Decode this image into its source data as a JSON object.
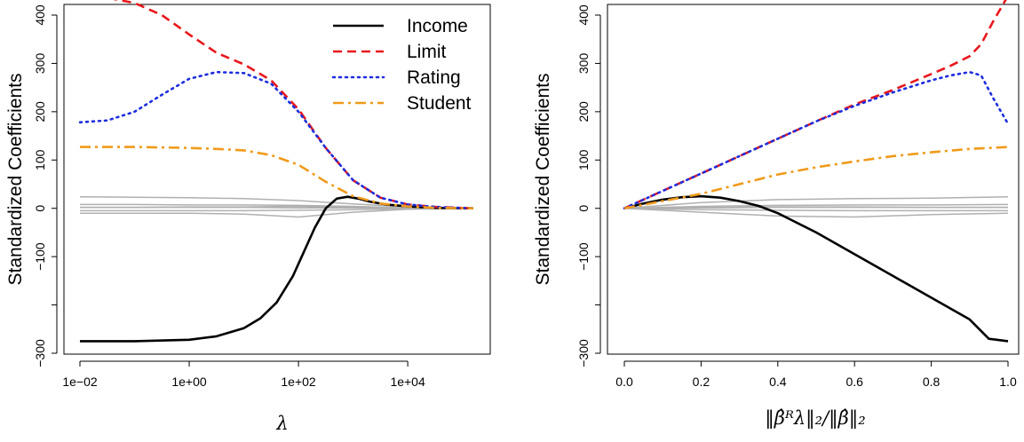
{
  "chart_data": [
    {
      "type": "line",
      "id": "left",
      "xscale": "log10",
      "xlim": [
        -2,
        5.3
      ],
      "ylim": [
        -300,
        450
      ],
      "xlabel": "λ",
      "ylabel": "Standardized Coefficients",
      "xticks": [
        {
          "value": -2,
          "label": "1e−02"
        },
        {
          "value": 0,
          "label": "1e+00"
        },
        {
          "value": 2,
          "label": "1e+02"
        },
        {
          "value": 4,
          "label": "1e+04"
        }
      ],
      "yticks": [
        {
          "value": -300,
          "label": "−300"
        },
        {
          "value": -200,
          "label": ""
        },
        {
          "value": -100,
          "label": "−100"
        },
        {
          "value": 0,
          "label": "0"
        },
        {
          "value": 100,
          "label": "100"
        },
        {
          "value": 200,
          "label": "200"
        },
        {
          "value": 300,
          "label": "300"
        },
        {
          "value": 400,
          "label": "400"
        }
      ],
      "legend": {
        "position": "top-right",
        "entries": [
          {
            "label": "Income",
            "series": "Income"
          },
          {
            "label": "Limit",
            "series": "Limit"
          },
          {
            "label": "Rating",
            "series": "Rating"
          },
          {
            "label": "Student",
            "series": "Student"
          }
        ]
      },
      "series": [
        {
          "name": "Income",
          "color": "#000000",
          "style": "solid",
          "x": [
            -2,
            -1,
            0,
            0.5,
            1,
            1.3,
            1.6,
            1.9,
            2.1,
            2.3,
            2.5,
            2.7,
            2.9,
            3.1,
            3.3,
            3.6,
            4,
            4.5,
            5.2
          ],
          "y": [
            -275,
            -275,
            -272,
            -265,
            -248,
            -228,
            -195,
            -140,
            -90,
            -40,
            0,
            20,
            24,
            20,
            14,
            8,
            4,
            1,
            0
          ]
        },
        {
          "name": "Limit",
          "color": "#e8181d",
          "style": "dashed",
          "x": [
            -2,
            -1.5,
            -1,
            -0.5,
            0,
            0.5,
            1,
            1.5,
            2,
            2.5,
            3,
            3.5,
            4,
            4.5,
            5.2
          ],
          "y": [
            437,
            436,
            425,
            400,
            360,
            322,
            298,
            265,
            205,
            125,
            58,
            22,
            8,
            3,
            0
          ]
        },
        {
          "name": "Rating",
          "color": "#1e2ede",
          "style": "dotted",
          "x": [
            -2,
            -1.5,
            -1,
            -0.5,
            0,
            0.5,
            1,
            1.5,
            2,
            2.5,
            3,
            3.5,
            4,
            4.5,
            5.2
          ],
          "y": [
            178,
            182,
            200,
            235,
            268,
            282,
            280,
            258,
            200,
            125,
            58,
            22,
            8,
            3,
            0
          ]
        },
        {
          "name": "Student",
          "color": "#f09a1a",
          "style": "dotdash",
          "x": [
            -2,
            -1.5,
            -1,
            -0.5,
            0,
            0.5,
            1,
            1.5,
            2,
            2.5,
            3,
            3.5,
            4,
            4.5,
            5.2
          ],
          "y": [
            127,
            127,
            127,
            126,
            125,
            123,
            120,
            110,
            90,
            55,
            25,
            10,
            4,
            1,
            0
          ]
        },
        {
          "name": "other-1",
          "color": "#b0b0b0",
          "style": "solid",
          "x": [
            -2,
            -1,
            0,
            1,
            2,
            3,
            4,
            5.2
          ],
          "y": [
            24,
            23,
            22,
            20,
            16,
            9,
            3,
            0
          ]
        },
        {
          "name": "other-2",
          "color": "#b0b0b0",
          "style": "solid",
          "x": [
            -2,
            -1,
            0,
            1,
            2,
            3,
            4,
            5.2
          ],
          "y": [
            8,
            8,
            7,
            7,
            6,
            4,
            1,
            0
          ]
        },
        {
          "name": "other-3",
          "color": "#b0b0b0",
          "style": "solid",
          "x": [
            -2,
            -1,
            0,
            1,
            2,
            3,
            4,
            5.2
          ],
          "y": [
            2,
            2,
            2,
            2,
            1,
            1,
            0,
            0
          ]
        },
        {
          "name": "other-4",
          "color": "#b0b0b0",
          "style": "solid",
          "x": [
            -2,
            -1,
            0,
            1,
            2,
            3,
            4,
            5.2
          ],
          "y": [
            -5,
            -5,
            -5,
            -5,
            -4,
            -3,
            -1,
            0
          ]
        },
        {
          "name": "other-5",
          "color": "#b0b0b0",
          "style": "solid",
          "x": [
            -2,
            -1,
            0,
            1,
            2,
            3,
            4,
            5.2
          ],
          "y": [
            -10,
            -10,
            -10,
            -12,
            -18,
            -8,
            -2,
            0
          ]
        },
        {
          "name": "other-6",
          "color": "#b0b0b0",
          "style": "solid",
          "x": [
            -2,
            -1,
            0,
            1,
            2,
            3,
            4,
            5.2
          ],
          "y": [
            2,
            2,
            3,
            3,
            4,
            2,
            1,
            0
          ]
        }
      ]
    },
    {
      "type": "line",
      "id": "right",
      "xlim": [
        -0.04,
        1.04
      ],
      "ylim": [
        -300,
        450
      ],
      "xlabel": "‖β̂ᴿλ‖₂/‖β̂‖₂",
      "ylabel": "Standardized Coefficients",
      "xticks": [
        {
          "value": 0.0,
          "label": "0.0"
        },
        {
          "value": 0.2,
          "label": "0.2"
        },
        {
          "value": 0.4,
          "label": "0.4"
        },
        {
          "value": 0.6,
          "label": "0.6"
        },
        {
          "value": 0.8,
          "label": "0.8"
        },
        {
          "value": 1.0,
          "label": "1.0"
        }
      ],
      "yticks": [
        {
          "value": -300,
          "label": "−300"
        },
        {
          "value": -200,
          "label": ""
        },
        {
          "value": -100,
          "label": "−100"
        },
        {
          "value": 0,
          "label": "0"
        },
        {
          "value": 100,
          "label": "100"
        },
        {
          "value": 200,
          "label": "200"
        },
        {
          "value": 300,
          "label": "300"
        },
        {
          "value": 400,
          "label": "400"
        }
      ],
      "series": [
        {
          "name": "Income",
          "color": "#000000",
          "style": "solid",
          "x": [
            0,
            0.05,
            0.1,
            0.15,
            0.2,
            0.25,
            0.3,
            0.35,
            0.4,
            0.5,
            0.6,
            0.7,
            0.8,
            0.9,
            0.95,
            1.0
          ],
          "y": [
            0,
            10,
            18,
            23,
            25,
            22,
            15,
            5,
            -10,
            -50,
            -95,
            -140,
            -185,
            -230,
            -270,
            -275
          ]
        },
        {
          "name": "Limit",
          "color": "#e8181d",
          "style": "dashed",
          "x": [
            0,
            0.1,
            0.2,
            0.3,
            0.4,
            0.5,
            0.6,
            0.7,
            0.8,
            0.85,
            0.9,
            0.93,
            0.96,
            1.0
          ],
          "y": [
            0,
            36,
            72,
            108,
            144,
            180,
            215,
            245,
            278,
            295,
            315,
            340,
            385,
            440
          ]
        },
        {
          "name": "Rating",
          "color": "#1e2ede",
          "style": "dotted",
          "x": [
            0,
            0.1,
            0.2,
            0.3,
            0.4,
            0.5,
            0.6,
            0.7,
            0.8,
            0.85,
            0.9,
            0.93,
            0.96,
            1.0
          ],
          "y": [
            0,
            36,
            72,
            108,
            144,
            180,
            212,
            240,
            265,
            275,
            282,
            275,
            230,
            175
          ]
        },
        {
          "name": "Student",
          "color": "#f09a1a",
          "style": "dotdash",
          "x": [
            0,
            0.1,
            0.2,
            0.3,
            0.4,
            0.5,
            0.6,
            0.7,
            0.8,
            0.9,
            1.0
          ],
          "y": [
            0,
            15,
            30,
            50,
            70,
            85,
            97,
            108,
            116,
            123,
            127
          ]
        },
        {
          "name": "other-1",
          "color": "#b0b0b0",
          "style": "solid",
          "x": [
            0,
            0.2,
            0.4,
            0.6,
            0.8,
            1.0
          ],
          "y": [
            0,
            12,
            18,
            20,
            21,
            24
          ]
        },
        {
          "name": "other-2",
          "color": "#b0b0b0",
          "style": "solid",
          "x": [
            0,
            0.2,
            0.4,
            0.6,
            0.8,
            1.0
          ],
          "y": [
            0,
            4,
            6,
            7,
            7,
            8
          ]
        },
        {
          "name": "other-3",
          "color": "#b0b0b0",
          "style": "solid",
          "x": [
            0,
            0.2,
            0.4,
            0.6,
            0.8,
            1.0
          ],
          "y": [
            0,
            1,
            2,
            2,
            2,
            2
          ]
        },
        {
          "name": "other-4",
          "color": "#b0b0b0",
          "style": "solid",
          "x": [
            0,
            0.2,
            0.4,
            0.6,
            0.8,
            1.0
          ],
          "y": [
            0,
            -3,
            -4,
            -5,
            -5,
            -5
          ]
        },
        {
          "name": "other-5",
          "color": "#b0b0b0",
          "style": "solid",
          "x": [
            0,
            0.2,
            0.4,
            0.6,
            0.8,
            1.0
          ],
          "y": [
            0,
            -8,
            -16,
            -18,
            -13,
            -10
          ]
        },
        {
          "name": "other-6",
          "color": "#b0b0b0",
          "style": "solid",
          "x": [
            0,
            0.2,
            0.4,
            0.6,
            0.8,
            1.0
          ],
          "y": [
            0,
            2,
            3,
            3,
            2,
            2
          ]
        }
      ]
    }
  ]
}
